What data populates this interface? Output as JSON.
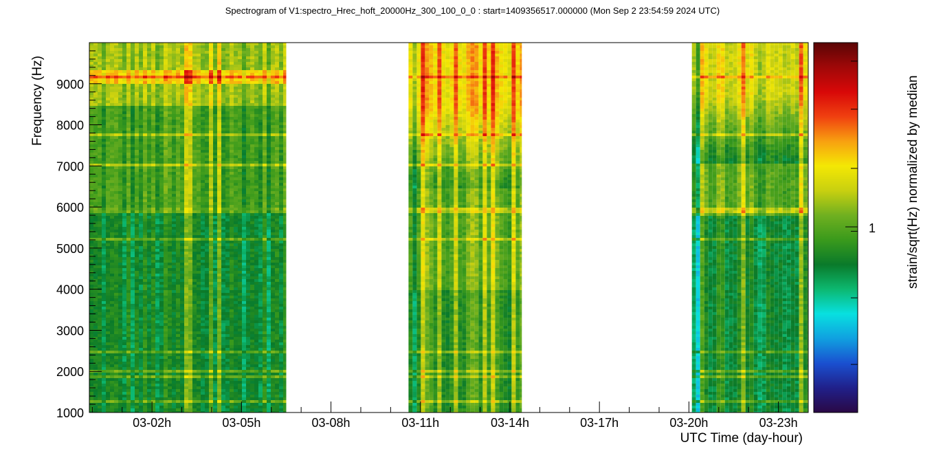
{
  "chart_data": {
    "type": "heatmap",
    "title": "Spectrogram of V1:spectro_Hrec_hoft_20000Hz_300_100_0_0 : start=1409356517.000000 (Mon Sep  2 23:54:59 2024 UTC)",
    "xlabel": "UTC Time (day-hour)",
    "ylabel": "Frequency (Hz)",
    "colorbar_label": "strain/sqrt(Hz) normalized by median",
    "colorbar_tick": "1",
    "x_unit": "hours of day 03",
    "xlim": [
      23.9,
      24.0
    ],
    "x_tick_labels": [
      "03-02h",
      "03-05h",
      "03-08h",
      "03-11h",
      "03-14h",
      "03-17h",
      "03-20h",
      "03-23h"
    ],
    "x_tick_hours": [
      2,
      5,
      8,
      11,
      14,
      17,
      20,
      23
    ],
    "ylim": [
      1000,
      10000
    ],
    "y_tick_labels": [
      "1000",
      "2000",
      "3000",
      "4000",
      "5000",
      "6000",
      "7000",
      "8000",
      "9000"
    ],
    "y_tick_values": [
      1000,
      2000,
      3000,
      4000,
      5000,
      6000,
      7000,
      8000,
      9000
    ],
    "x_start_hour": -0.1,
    "x_end_hour": 24.0,
    "data_segments": [
      {
        "start_hour": -0.1,
        "end_hour": 6.5,
        "level": "mostly green, yellow/red above 9000 Hz"
      },
      {
        "start_hour": 10.6,
        "end_hour": 14.4,
        "level": "yellow-green, red above 6500 Hz"
      },
      {
        "start_hour": 20.1,
        "end_hour": 24.0,
        "level": "green, red above 7000 Hz"
      }
    ],
    "line_features_hz": [
      1300,
      1900,
      2050,
      2500,
      5250,
      5950,
      7050,
      7800,
      9200
    ],
    "colormap": [
      "#2a0845",
      "#20208a",
      "#1a50d0",
      "#10a0e0",
      "#08e0e0",
      "#0cb870",
      "#0a7a2a",
      "#3a9a1c",
      "#70b020",
      "#c8d010",
      "#f4e804",
      "#f8a010",
      "#f04010",
      "#d80808",
      "#a00808",
      "#5a0505"
    ]
  }
}
